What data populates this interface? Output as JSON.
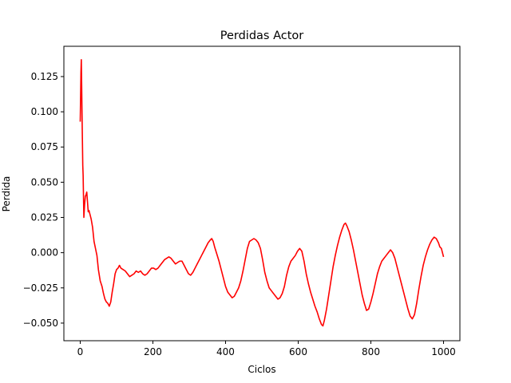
{
  "chart_data": {
    "type": "line",
    "title": "Perdidas Actor",
    "xlabel": "Ciclos",
    "ylabel": "Perdida",
    "xlim": [
      -45,
      1045
    ],
    "ylim": [
      -0.0625,
      0.1465
    ],
    "xticks": [
      0,
      200,
      400,
      600,
      800,
      1000
    ],
    "xtick_labels": [
      "0",
      "200",
      "400",
      "600",
      "800",
      "1000"
    ],
    "yticks": [
      -0.05,
      -0.025,
      0.0,
      0.025,
      0.05,
      0.075,
      0.1,
      0.125
    ],
    "ytick_labels": [
      "−0.050",
      "−0.025",
      "0.000",
      "0.025",
      "0.050",
      "0.075",
      "0.100",
      "0.125"
    ],
    "grid": false,
    "series": [
      {
        "color": "#ff0000",
        "points": [
          [
            0,
            0.093
          ],
          [
            1,
            0.11
          ],
          [
            2,
            0.128
          ],
          [
            3,
            0.137
          ],
          [
            4,
            0.118
          ],
          [
            5,
            0.098
          ],
          [
            6,
            0.08
          ],
          [
            7,
            0.062
          ],
          [
            8,
            0.055
          ],
          [
            9,
            0.04
          ],
          [
            10,
            0.025
          ],
          [
            12,
            0.034
          ],
          [
            14,
            0.04
          ],
          [
            16,
            0.041
          ],
          [
            18,
            0.043
          ],
          [
            20,
            0.036
          ],
          [
            22,
            0.029
          ],
          [
            24,
            0.03
          ],
          [
            26,
            0.028
          ],
          [
            30,
            0.024
          ],
          [
            34,
            0.018
          ],
          [
            38,
            0.008
          ],
          [
            42,
            0.003
          ],
          [
            46,
            -0.002
          ],
          [
            50,
            -0.012
          ],
          [
            55,
            -0.02
          ],
          [
            60,
            -0.024
          ],
          [
            64,
            -0.029
          ],
          [
            68,
            -0.033
          ],
          [
            72,
            -0.035
          ],
          [
            76,
            -0.036
          ],
          [
            80,
            -0.038
          ],
          [
            84,
            -0.035
          ],
          [
            88,
            -0.028
          ],
          [
            92,
            -0.022
          ],
          [
            96,
            -0.015
          ],
          [
            100,
            -0.012
          ],
          [
            104,
            -0.011
          ],
          [
            108,
            -0.009
          ],
          [
            112,
            -0.011
          ],
          [
            118,
            -0.012
          ],
          [
            124,
            -0.013
          ],
          [
            130,
            -0.015
          ],
          [
            136,
            -0.017
          ],
          [
            142,
            -0.016
          ],
          [
            148,
            -0.015
          ],
          [
            154,
            -0.013
          ],
          [
            160,
            -0.014
          ],
          [
            166,
            -0.013
          ],
          [
            172,
            -0.015
          ],
          [
            178,
            -0.016
          ],
          [
            184,
            -0.015
          ],
          [
            190,
            -0.013
          ],
          [
            196,
            -0.011
          ],
          [
            202,
            -0.011
          ],
          [
            208,
            -0.012
          ],
          [
            214,
            -0.011
          ],
          [
            220,
            -0.009
          ],
          [
            226,
            -0.007
          ],
          [
            232,
            -0.005
          ],
          [
            238,
            -0.004
          ],
          [
            244,
            -0.003
          ],
          [
            250,
            -0.004
          ],
          [
            256,
            -0.006
          ],
          [
            262,
            -0.008
          ],
          [
            268,
            -0.007
          ],
          [
            274,
            -0.006
          ],
          [
            280,
            -0.006
          ],
          [
            286,
            -0.009
          ],
          [
            292,
            -0.012
          ],
          [
            298,
            -0.015
          ],
          [
            304,
            -0.016
          ],
          [
            310,
            -0.014
          ],
          [
            316,
            -0.011
          ],
          [
            322,
            -0.008
          ],
          [
            328,
            -0.005
          ],
          [
            334,
            -0.002
          ],
          [
            340,
            0.001
          ],
          [
            346,
            0.004
          ],
          [
            352,
            0.007
          ],
          [
            358,
            0.009
          ],
          [
            362,
            0.01
          ],
          [
            366,
            0.008
          ],
          [
            370,
            0.004
          ],
          [
            376,
            -0.001
          ],
          [
            382,
            -0.006
          ],
          [
            388,
            -0.012
          ],
          [
            394,
            -0.018
          ],
          [
            400,
            -0.024
          ],
          [
            406,
            -0.028
          ],
          [
            412,
            -0.03
          ],
          [
            418,
            -0.032
          ],
          [
            424,
            -0.031
          ],
          [
            430,
            -0.028
          ],
          [
            436,
            -0.025
          ],
          [
            442,
            -0.02
          ],
          [
            448,
            -0.013
          ],
          [
            454,
            -0.005
          ],
          [
            460,
            0.003
          ],
          [
            466,
            0.008
          ],
          [
            472,
            0.009
          ],
          [
            478,
            0.01
          ],
          [
            484,
            0.009
          ],
          [
            490,
            0.007
          ],
          [
            496,
            0.003
          ],
          [
            502,
            -0.005
          ],
          [
            508,
            -0.014
          ],
          [
            514,
            -0.02
          ],
          [
            520,
            -0.025
          ],
          [
            526,
            -0.027
          ],
          [
            532,
            -0.029
          ],
          [
            538,
            -0.031
          ],
          [
            544,
            -0.033
          ],
          [
            550,
            -0.032
          ],
          [
            556,
            -0.029
          ],
          [
            562,
            -0.024
          ],
          [
            568,
            -0.016
          ],
          [
            574,
            -0.01
          ],
          [
            580,
            -0.006
          ],
          [
            586,
            -0.004
          ],
          [
            592,
            -0.002
          ],
          [
            598,
            0.001
          ],
          [
            604,
            0.003
          ],
          [
            610,
            0.001
          ],
          [
            616,
            -0.006
          ],
          [
            622,
            -0.015
          ],
          [
            628,
            -0.022
          ],
          [
            634,
            -0.028
          ],
          [
            640,
            -0.033
          ],
          [
            646,
            -0.038
          ],
          [
            652,
            -0.042
          ],
          [
            658,
            -0.047
          ],
          [
            664,
            -0.051
          ],
          [
            668,
            -0.052
          ],
          [
            672,
            -0.048
          ],
          [
            678,
            -0.04
          ],
          [
            684,
            -0.03
          ],
          [
            690,
            -0.02
          ],
          [
            696,
            -0.01
          ],
          [
            702,
            -0.002
          ],
          [
            708,
            0.005
          ],
          [
            714,
            0.011
          ],
          [
            720,
            0.016
          ],
          [
            726,
            0.02
          ],
          [
            730,
            0.021
          ],
          [
            734,
            0.019
          ],
          [
            740,
            0.015
          ],
          [
            746,
            0.009
          ],
          [
            752,
            0.002
          ],
          [
            758,
            -0.006
          ],
          [
            764,
            -0.014
          ],
          [
            770,
            -0.022
          ],
          [
            776,
            -0.03
          ],
          [
            782,
            -0.036
          ],
          [
            788,
            -0.041
          ],
          [
            794,
            -0.04
          ],
          [
            800,
            -0.035
          ],
          [
            806,
            -0.029
          ],
          [
            812,
            -0.022
          ],
          [
            818,
            -0.015
          ],
          [
            824,
            -0.01
          ],
          [
            830,
            -0.006
          ],
          [
            836,
            -0.004
          ],
          [
            842,
            -0.002
          ],
          [
            848,
            0.0
          ],
          [
            854,
            0.002
          ],
          [
            860,
            0.0
          ],
          [
            866,
            -0.004
          ],
          [
            872,
            -0.01
          ],
          [
            878,
            -0.016
          ],
          [
            884,
            -0.022
          ],
          [
            890,
            -0.028
          ],
          [
            896,
            -0.034
          ],
          [
            902,
            -0.04
          ],
          [
            908,
            -0.045
          ],
          [
            914,
            -0.047
          ],
          [
            920,
            -0.044
          ],
          [
            926,
            -0.036
          ],
          [
            932,
            -0.026
          ],
          [
            938,
            -0.017
          ],
          [
            944,
            -0.009
          ],
          [
            950,
            -0.003
          ],
          [
            956,
            0.002
          ],
          [
            962,
            0.006
          ],
          [
            968,
            0.009
          ],
          [
            974,
            0.011
          ],
          [
            980,
            0.01
          ],
          [
            986,
            0.007
          ],
          [
            990,
            0.004
          ],
          [
            994,
            0.003
          ],
          [
            997,
            0.0
          ],
          [
            1000,
            -0.003
          ]
        ]
      }
    ]
  }
}
